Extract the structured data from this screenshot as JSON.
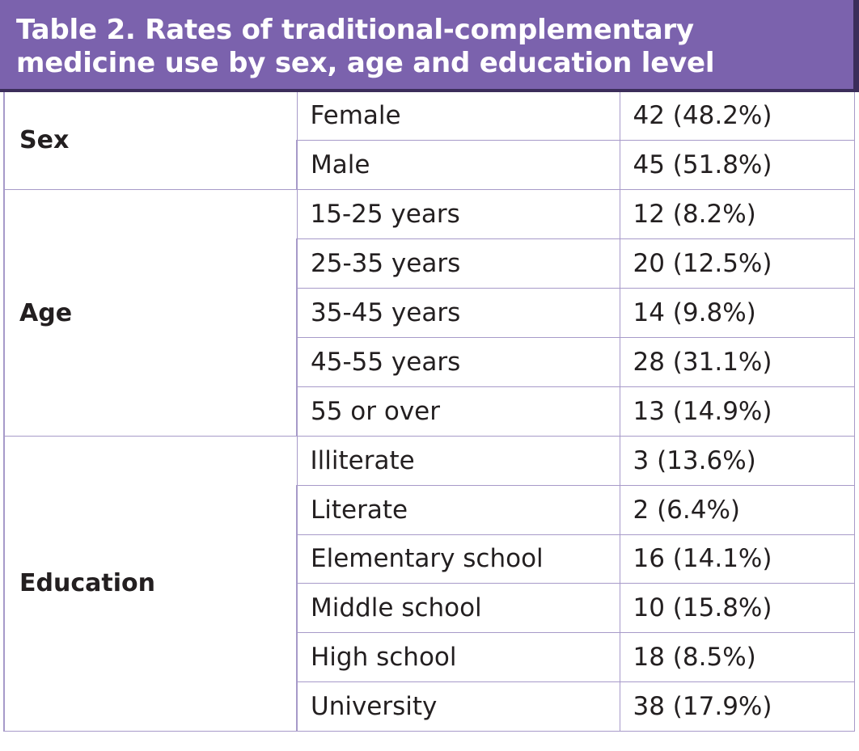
{
  "caption": "Table 2. Rates of traditional-complementary medicine use by sex, age and education level",
  "groups": [
    {
      "name": "Sex",
      "rows": [
        {
          "label": "Female",
          "value": "42 (48.2%)"
        },
        {
          "label": "Male",
          "value": "45 (51.8%)"
        }
      ]
    },
    {
      "name": "Age",
      "rows": [
        {
          "label": "15-25 years",
          "value": "12 (8.2%)"
        },
        {
          "label": "25-35 years",
          "value": "20 (12.5%)"
        },
        {
          "label": "35-45 years",
          "value": "14 (9.8%)"
        },
        {
          "label": "45-55 years",
          "value": "28 (31.1%)"
        },
        {
          "label": "55 or over",
          "value": "13 (14.9%)"
        }
      ]
    },
    {
      "name": "Education",
      "rows": [
        {
          "label": "Illiterate",
          "value": "3 (13.6%)"
        },
        {
          "label": "Literate",
          "value": "2 (6.4%)"
        },
        {
          "label": "Elementary school",
          "value": "16 (14.1%)"
        },
        {
          "label": "Middle school",
          "value": "10 (15.8%)"
        },
        {
          "label": "High school",
          "value": "18 (8.5%)"
        },
        {
          "label": "University",
          "value": "38 (17.9%)"
        }
      ]
    }
  ],
  "colors": {
    "header_bg": "#7b62ad",
    "header_shadow": "#3b2d5a",
    "grid": "#a79ac9"
  }
}
